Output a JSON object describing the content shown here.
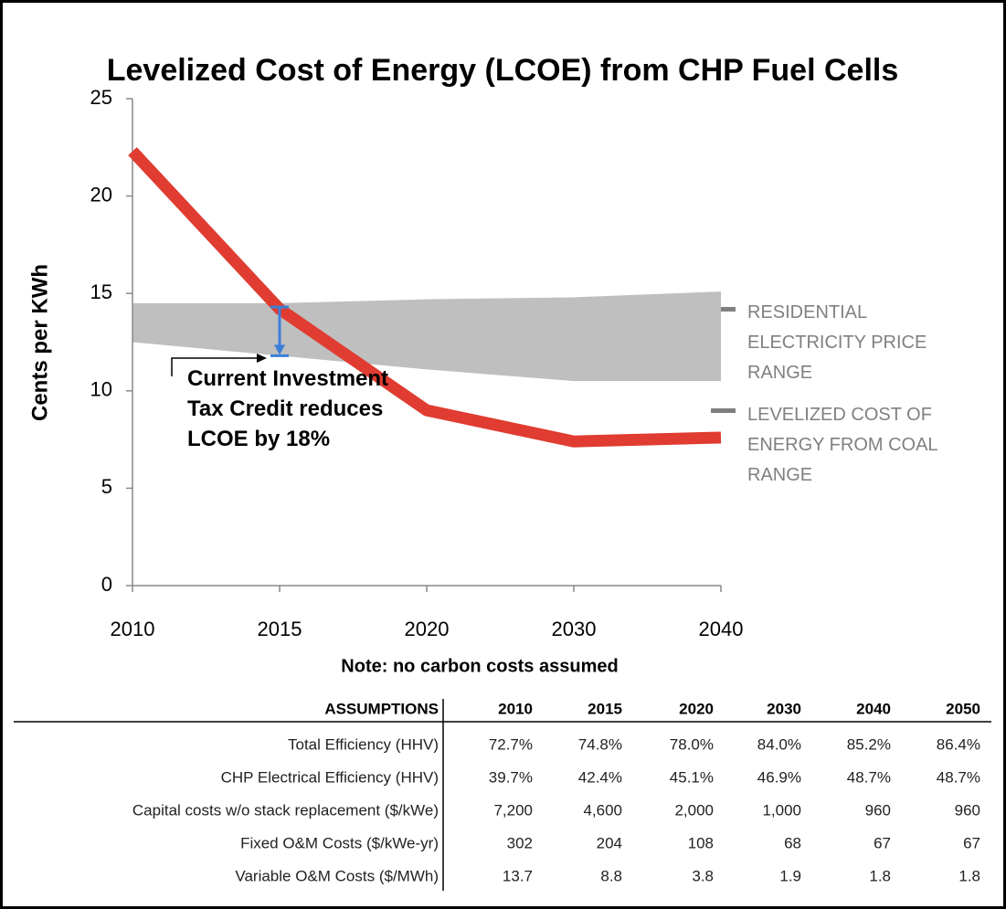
{
  "chart_data": {
    "type": "line",
    "title": "Levelized Cost of Energy (LCOE) from CHP Fuel Cells",
    "ylabel": "Cents per KWh",
    "note": "Note: no carbon costs assumed",
    "categories": [
      "2010",
      "2015",
      "2020",
      "2030",
      "2040"
    ],
    "series": [
      {
        "color": "#e03c31",
        "values": [
          22.3,
          14.2,
          9.0,
          7.4,
          7.6
        ]
      }
    ],
    "band": {
      "color": "#bfbfbf",
      "low": [
        12.5,
        11.8,
        11.1,
        10.5,
        10.5
      ],
      "high": [
        14.5,
        14.5,
        14.7,
        14.8,
        15.1
      ]
    },
    "legend_labels": [
      "RESIDENTIAL ELECTRICITY PRICE RANGE",
      "LEVELIZED COST OF ENERGY FROM COAL RANGE"
    ],
    "annotation": {
      "text": "Current Investment Tax Credit reduces LCOE by 18%",
      "color": "#3b7fd6",
      "from": 14.3,
      "to": 11.8
    },
    "ylim": [
      0,
      25
    ],
    "yticks": [
      0,
      5,
      10,
      15,
      20,
      25
    ]
  },
  "table": {
    "header": [
      "ASSUMPTIONS",
      "2010",
      "2015",
      "2020",
      "2030",
      "2040",
      "2050"
    ],
    "rows": [
      [
        "Total Efficiency (HHV)",
        "72.7%",
        "74.8%",
        "78.0%",
        "84.0%",
        "85.2%",
        "86.4%"
      ],
      [
        "CHP Electrical Efficiency (HHV)",
        "39.7%",
        "42.4%",
        "45.1%",
        "46.9%",
        "48.7%",
        "48.7%"
      ],
      [
        "Capital costs w/o stack replacement ($/kWe)",
        "7,200",
        "4,600",
        "2,000",
        "1,000",
        "960",
        "960"
      ],
      [
        "Fixed O&M Costs ($/kWe-yr)",
        "302",
        "204",
        "108",
        "68",
        "67",
        "67"
      ],
      [
        "Variable O&M Costs ($/MWh)",
        "13.7",
        "8.8",
        "3.8",
        "1.9",
        "1.8",
        "1.8"
      ]
    ]
  }
}
